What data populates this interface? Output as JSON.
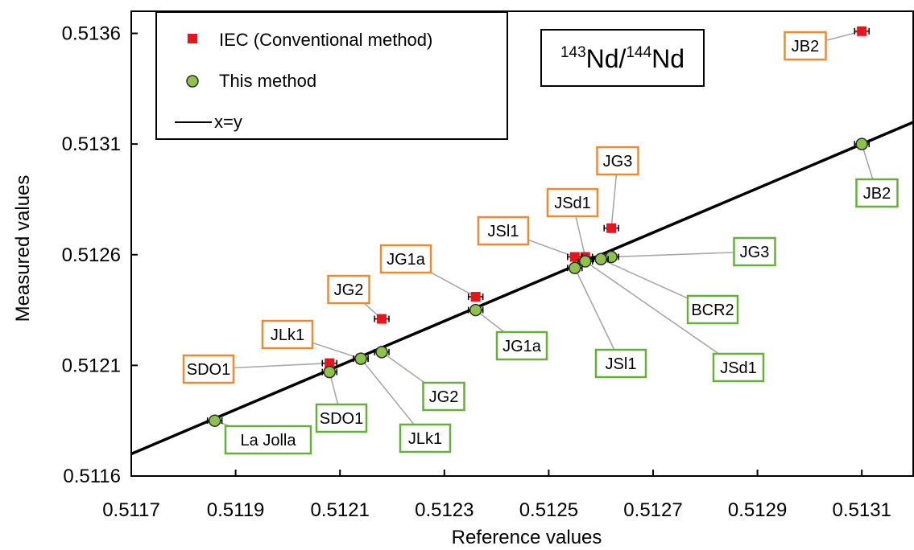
{
  "chart_data": {
    "type": "scatter",
    "xlabel": "Reference values",
    "ylabel": "Measured values",
    "xlim": [
      0.5117,
      0.5132
    ],
    "ylim": [
      0.5116,
      0.5137
    ],
    "x_ticks": [
      "0.5117",
      "0.5119",
      "0.5121",
      "0.5123",
      "0.5125",
      "0.5127",
      "0.5129",
      "0.5131"
    ],
    "x_tick_values": [
      0.5117,
      0.5119,
      0.5121,
      0.5123,
      0.5125,
      0.5127,
      0.5129,
      0.5131
    ],
    "y_ticks": [
      "0.5116",
      "0.5121",
      "0.5126",
      "0.5131",
      "0.5136"
    ],
    "y_tick_values": [
      0.5116,
      0.5121,
      0.5126,
      0.5131,
      0.5136
    ],
    "grid": false,
    "legend_position": "top-left",
    "box_label": {
      "pre1": "143",
      "mid1": "Nd/",
      "pre2": "144",
      "mid2": "Nd"
    },
    "series": [
      {
        "name": "IEC (Conventional method)",
        "marker": "square",
        "color": "#e8141c",
        "label_box_color": "#ef8a32",
        "points": [
          {
            "label": "JB2",
            "x": 0.5131,
            "y": 0.51361
          },
          {
            "label": "JG3",
            "x": 0.51262,
            "y": 0.51272
          },
          {
            "label": "JSd1",
            "x": 0.51257,
            "y": 0.51259
          },
          {
            "label": "JSl1",
            "x": 0.51255,
            "y": 0.51259
          },
          {
            "label": "JG1a",
            "x": 0.51236,
            "y": 0.51241
          },
          {
            "label": "JG2",
            "x": 0.51218,
            "y": 0.51231
          },
          {
            "label": "JLk1",
            "x": 0.51214,
            "y": 0.51213
          },
          {
            "label": "SDO1",
            "x": 0.51208,
            "y": 0.51211
          }
        ]
      },
      {
        "name": "This method",
        "marker": "circle",
        "color": "#8dc24c",
        "label_box_color": "#66b03a",
        "points": [
          {
            "label": "JB2",
            "x": 0.5131,
            "y": 0.5131
          },
          {
            "label": "JG3",
            "x": 0.51262,
            "y": 0.51259
          },
          {
            "label": "JSd1",
            "x": 0.51257,
            "y": 0.51257
          },
          {
            "label": "BCR2",
            "x": 0.5126,
            "y": 0.51258
          },
          {
            "label": "JSl1",
            "x": 0.51255,
            "y": 0.51254
          },
          {
            "label": "JG1a",
            "x": 0.51236,
            "y": 0.51235
          },
          {
            "label": "JG2",
            "x": 0.51218,
            "y": 0.51216
          },
          {
            "label": "JLk1",
            "x": 0.51214,
            "y": 0.51213
          },
          {
            "label": "SDO1",
            "x": 0.51208,
            "y": 0.51207
          },
          {
            "label": "La Jolla",
            "x": 0.51186,
            "y": 0.51185
          }
        ]
      },
      {
        "name": "x=y",
        "marker": "line",
        "color": "#000000"
      }
    ]
  }
}
